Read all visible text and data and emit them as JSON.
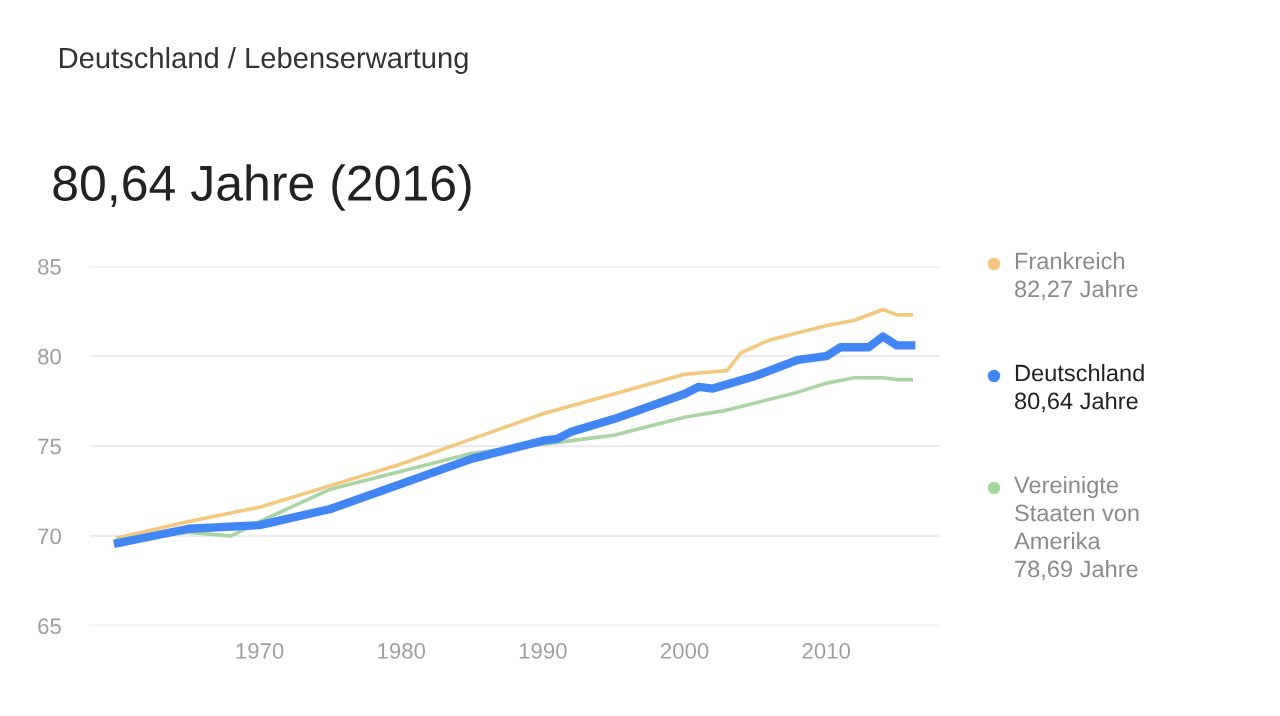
{
  "chart_data": {
    "type": "line",
    "title": "Deutschland / Lebenserwartung",
    "subtitle": "80,64 Jahre (2016)",
    "xlim": [
      1958,
      2018
    ],
    "xticks": [
      1970,
      1980,
      1990,
      2000,
      2010
    ],
    "ylim": [
      65,
      85
    ],
    "yticks": [
      65,
      70,
      75,
      80,
      85
    ],
    "grid": "y",
    "legend": "right",
    "line_style": "solid",
    "series": [
      {
        "name": "Frankreich\n82,27 Jahre",
        "color": "#f5c77e",
        "x": [
          1960,
          1965,
          1970,
          1975,
          1980,
          1985,
          1990,
          1995,
          2000,
          2003,
          2004,
          2006,
          2008,
          2010,
          2012,
          2014,
          2015,
          2016
        ],
        "values": [
          69.9,
          70.8,
          71.6,
          72.8,
          74.0,
          75.4,
          76.8,
          77.9,
          79.0,
          79.2,
          80.2,
          80.9,
          81.3,
          81.7,
          82.0,
          82.6,
          82.3,
          82.3
        ]
      },
      {
        "name": "Deutschland\n80,64 Jahre",
        "color": "#4285f4",
        "x": [
          1960,
          1965,
          1970,
          1975,
          1980,
          1985,
          1990,
          1991,
          1992,
          1995,
          2000,
          2001,
          2002,
          2005,
          2008,
          2010,
          2011,
          2013,
          2014,
          2015,
          2016
        ],
        "values": [
          69.6,
          70.4,
          70.6,
          71.5,
          72.9,
          74.3,
          75.3,
          75.4,
          75.8,
          76.5,
          77.9,
          78.3,
          78.2,
          78.9,
          79.8,
          80.0,
          80.5,
          80.5,
          81.1,
          80.6,
          80.6
        ]
      },
      {
        "name": "Vereinigte\nStaaten von\nAmerika\n78,69 Jahre",
        "color": "#a8d5a2",
        "x": [
          1960,
          1965,
          1968,
          1970,
          1975,
          1980,
          1985,
          1993,
          1995,
          2000,
          2003,
          2005,
          2008,
          2010,
          2012,
          2014,
          2015,
          2016
        ],
        "values": [
          69.8,
          70.2,
          70.0,
          70.8,
          72.6,
          73.6,
          74.6,
          75.4,
          75.6,
          76.6,
          77.0,
          77.4,
          78.0,
          78.5,
          78.8,
          78.8,
          78.7,
          78.7
        ]
      }
    ]
  }
}
